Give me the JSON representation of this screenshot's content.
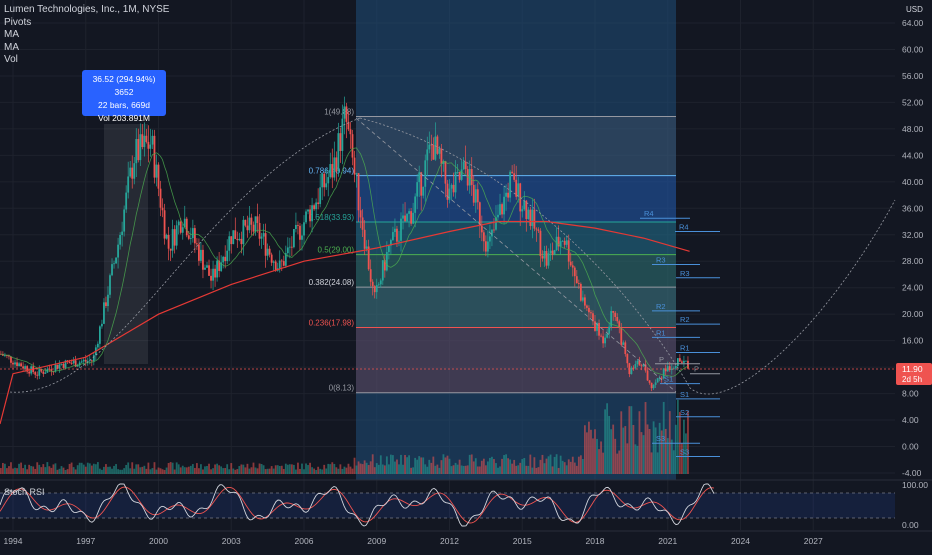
{
  "legend": {
    "symbol": "Lumen Technologies, Inc., 1M, NYSE",
    "pivots": "Pivots",
    "ma1": "MA",
    "ma2": "MA",
    "vol": "Vol"
  },
  "tooltip": {
    "line1": "36.52 (294.94%) 3652",
    "line2": "22 bars, 669d",
    "line3": "Vol 203.891M"
  },
  "price_axis": {
    "currency": "USD",
    "labels": [
      "64.00",
      "60.00",
      "56.00",
      "52.00",
      "48.00",
      "44.00",
      "40.00",
      "36.00",
      "32.00",
      "28.00",
      "24.00",
      "20.00",
      "16.00",
      "12.00",
      "8.00",
      "4.00",
      "0.00",
      "-4.00"
    ],
    "last_price": "11.90",
    "countdown": "2d 5h"
  },
  "time_axis": {
    "labels": [
      "1994",
      "1997",
      "2000",
      "2003",
      "2006",
      "2009",
      "2012",
      "2015",
      "2018",
      "2021",
      "2024",
      "2027"
    ]
  },
  "fib_levels": [
    {
      "label": "1(49.88)",
      "value": 49.88
    },
    {
      "label": "0.786(40.94)",
      "value": 40.94
    },
    {
      "label": "0.618(33.93)",
      "value": 33.93
    },
    {
      "label": "0.5(29.00)",
      "value": 29.0
    },
    {
      "label": "0.382(24.08)",
      "value": 24.08
    },
    {
      "label": "0.236(17.98)",
      "value": 17.98
    },
    {
      "label": "0(8.13)",
      "value": 8.13
    }
  ],
  "pivot_labels": [
    "R4",
    "R3",
    "R2",
    "R1",
    "P",
    "S1",
    "S2",
    "S3"
  ],
  "stoch": {
    "label": "Stoch RSI",
    "levels": [
      "100.00",
      "0.00"
    ]
  },
  "colors": {
    "bg": "#131722",
    "up": "#26a69a",
    "down": "#ef5350",
    "blue": "#2962ff",
    "ma_long": "#e53935",
    "grid": "#1e222d"
  }
}
